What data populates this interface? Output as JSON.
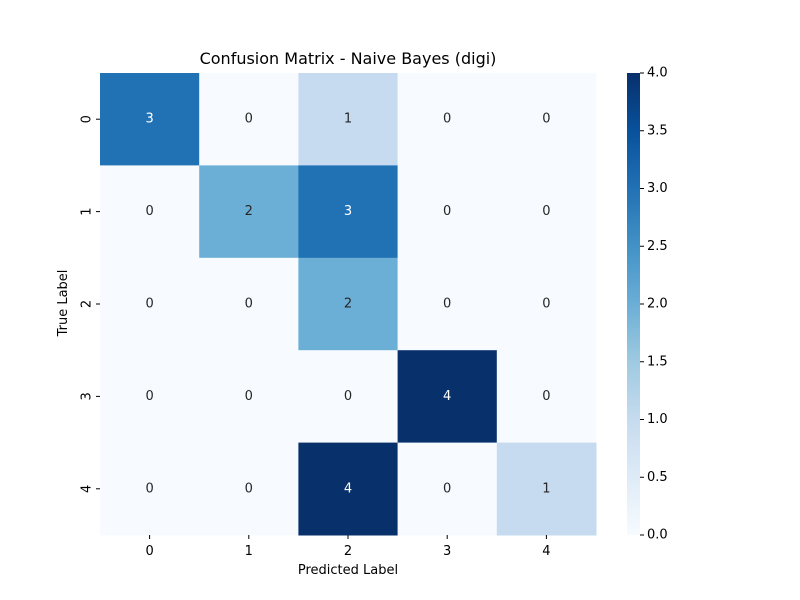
{
  "chart_data": {
    "type": "heatmap",
    "title": "Confusion Matrix - Naive Bayes (digi)",
    "xlabel": "Predicted Label",
    "ylabel": "True Label",
    "x_categories": [
      "0",
      "1",
      "2",
      "3",
      "4"
    ],
    "y_categories": [
      "0",
      "1",
      "2",
      "3",
      "4"
    ],
    "matrix": [
      [
        3,
        0,
        1,
        0,
        0
      ],
      [
        0,
        2,
        3,
        0,
        0
      ],
      [
        0,
        0,
        2,
        0,
        0
      ],
      [
        0,
        0,
        0,
        4,
        0
      ],
      [
        0,
        0,
        4,
        0,
        1
      ]
    ],
    "colorbar": {
      "range": [
        0,
        4
      ],
      "ticks": [
        "0.0",
        "0.5",
        "1.0",
        "1.5",
        "2.0",
        "2.5",
        "3.0",
        "3.5",
        "4.0"
      ],
      "colormap": "Blues"
    },
    "annotations": "cell values",
    "grid": false,
    "legend": "colorbar right"
  }
}
